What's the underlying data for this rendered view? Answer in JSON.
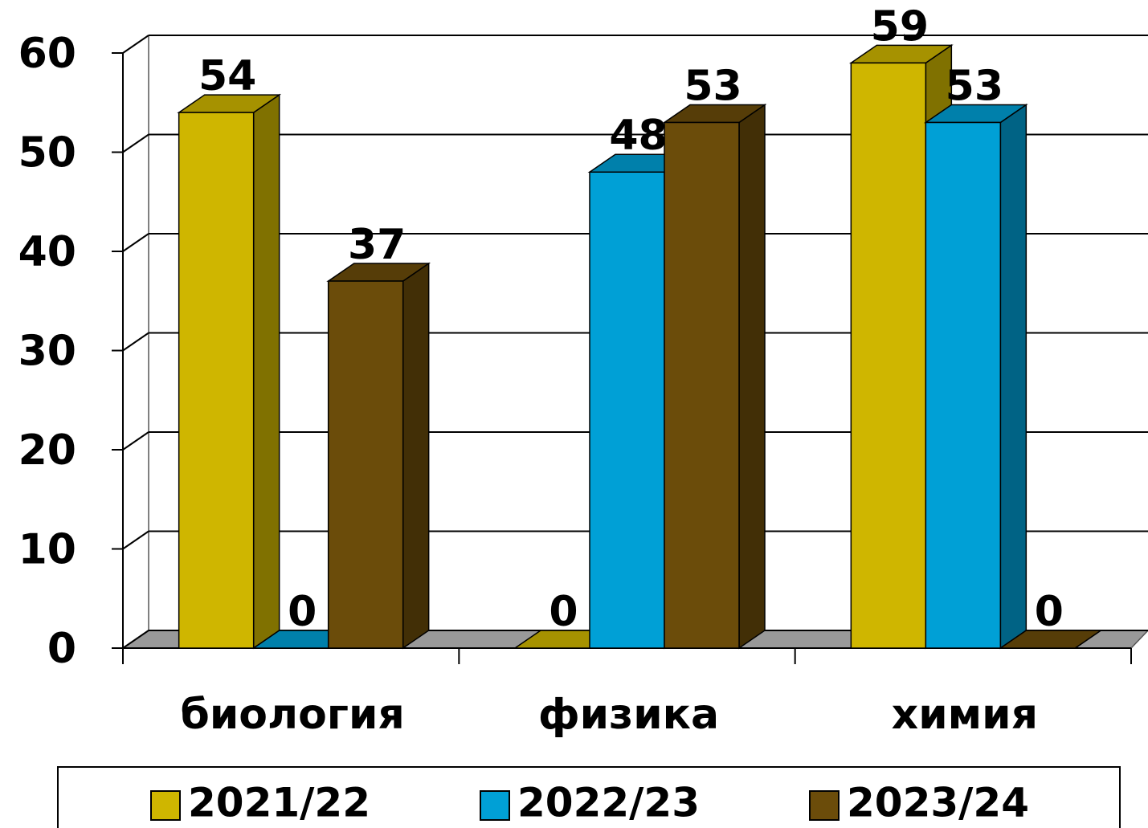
{
  "chart_data": {
    "type": "bar3d",
    "categories": [
      "биология",
      "физика",
      "химия"
    ],
    "series": [
      {
        "name": "2021/22",
        "color": "#cfb600",
        "values": [
          54,
          0,
          59
        ]
      },
      {
        "name": "2022/23",
        "color": "#00a0d6",
        "values": [
          0,
          48,
          53
        ]
      },
      {
        "name": "2023/24",
        "color": "#6b4c0a",
        "values": [
          37,
          53,
          0
        ]
      }
    ],
    "ylim": [
      0,
      60
    ],
    "yticks": [
      0,
      10,
      20,
      30,
      40,
      50,
      60
    ],
    "grid": true,
    "legend": "bottom"
  }
}
